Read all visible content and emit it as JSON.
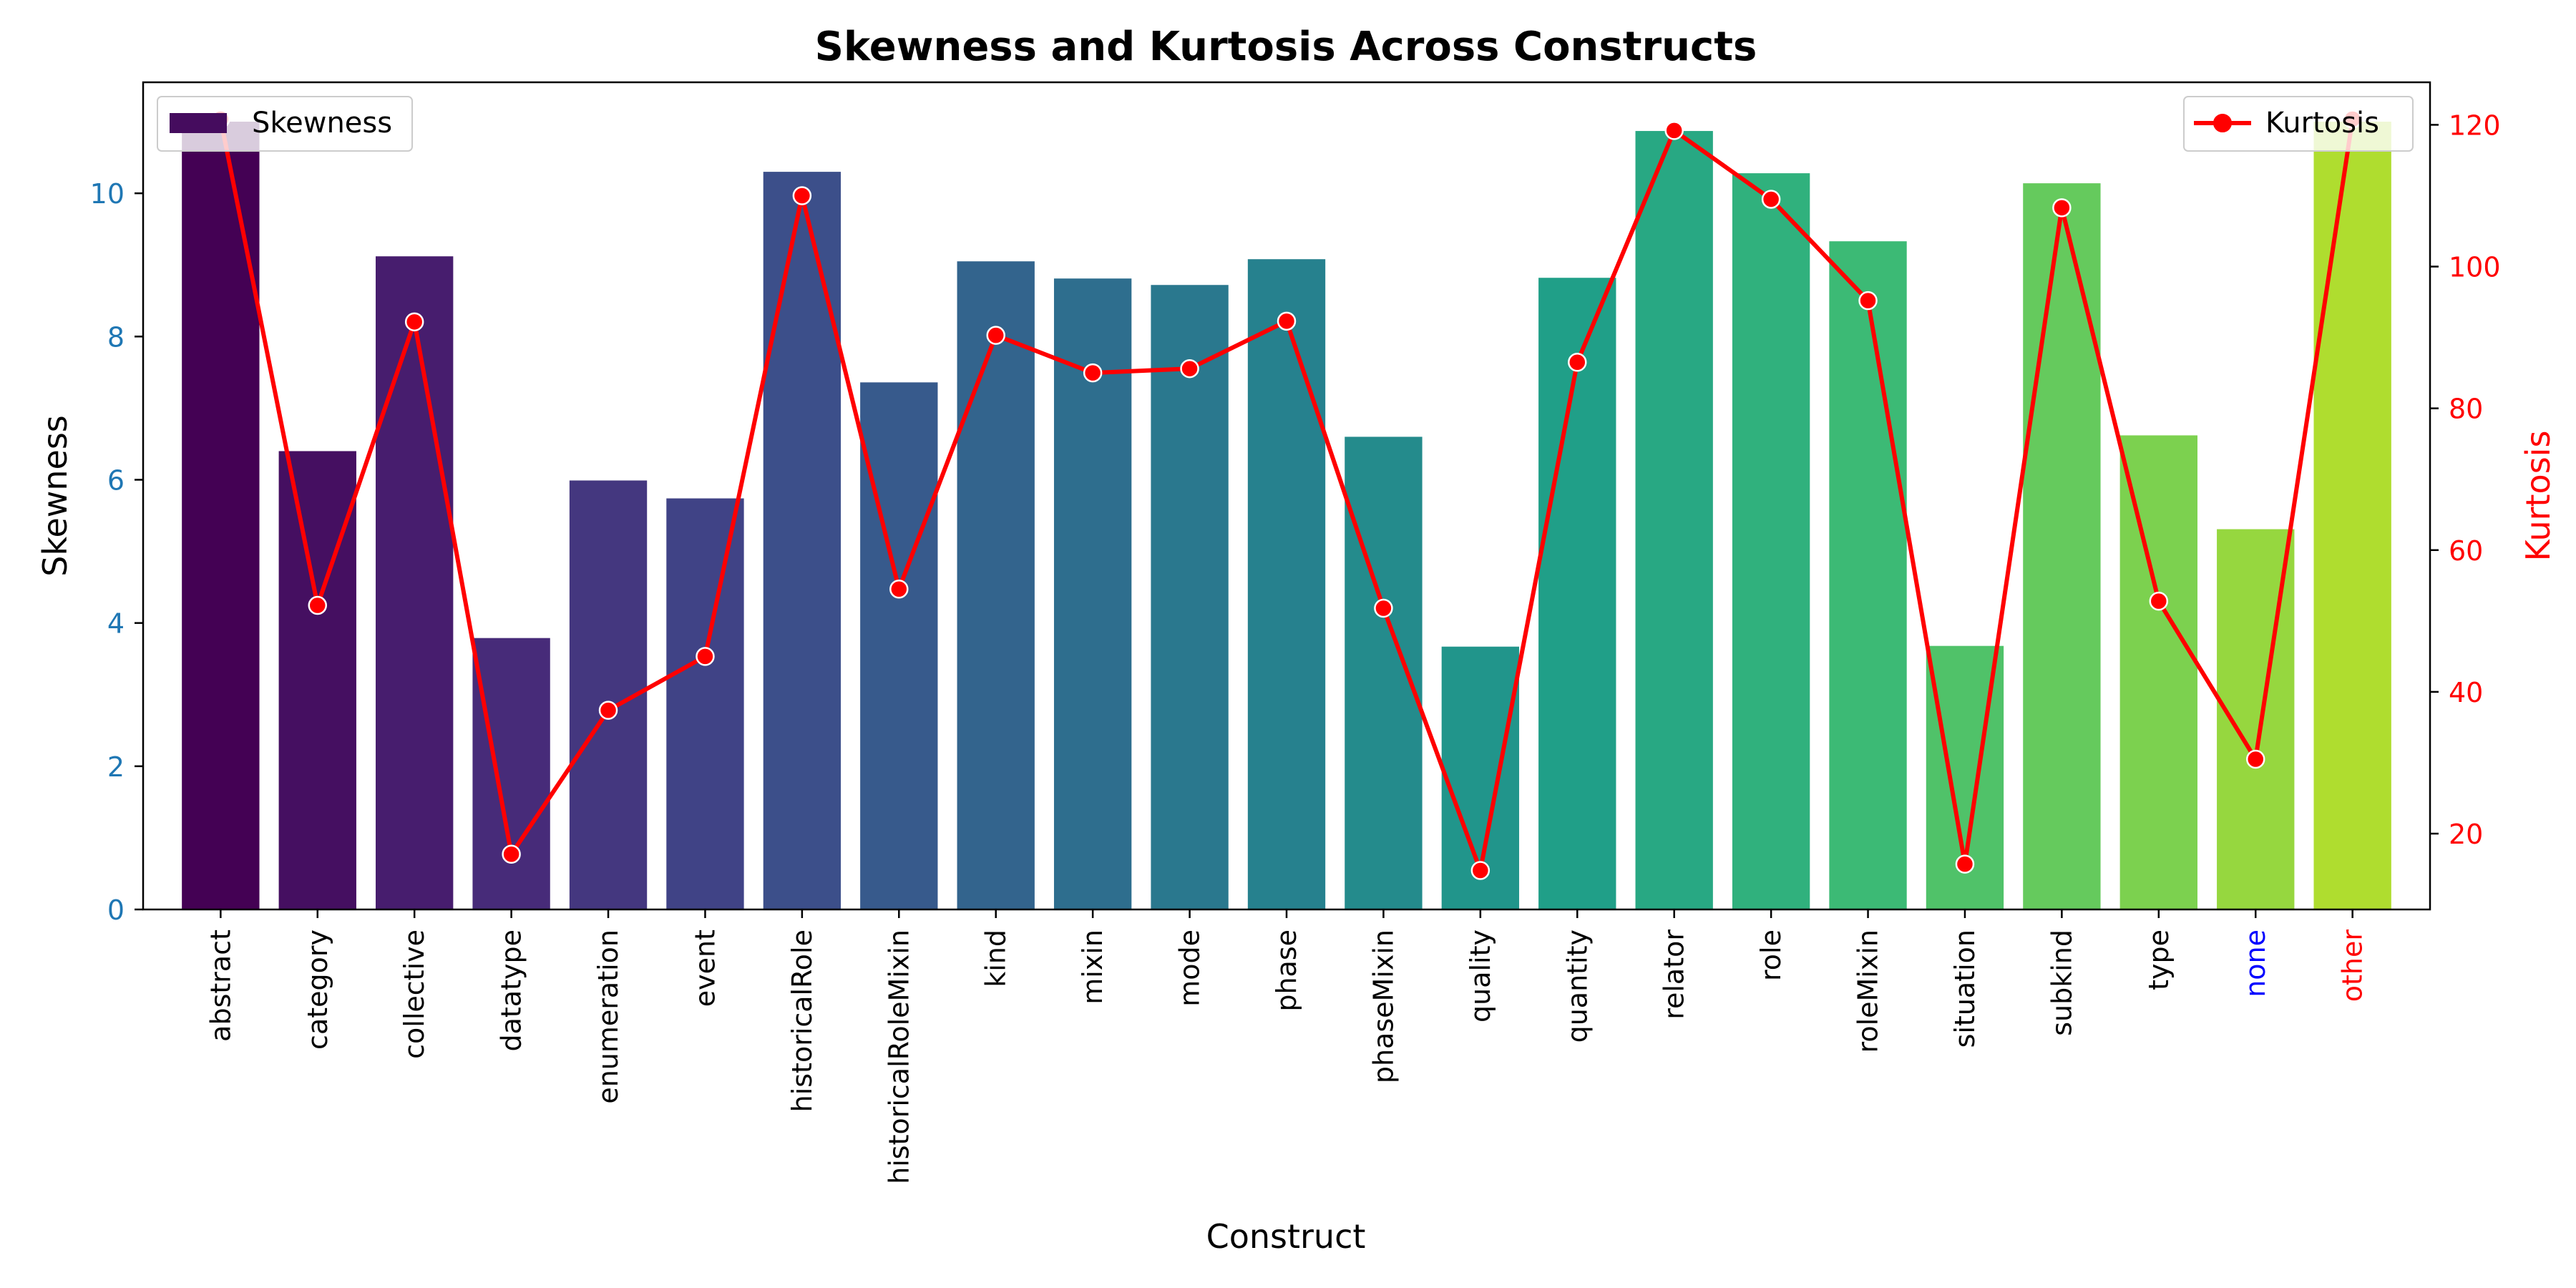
{
  "chart_data": {
    "type": "bar",
    "title": "Skewness and Kurtosis Across Constructs",
    "xlabel": "Construct",
    "ylabel": "Skewness",
    "y2label": "Kurtosis",
    "categories": [
      "abstract",
      "category",
      "collective",
      "datatype",
      "enumeration",
      "event",
      "historicalRole",
      "historicalRoleMixin",
      "kind",
      "mixin",
      "mode",
      "phase",
      "phaseMixin",
      "quality",
      "quantity",
      "relator",
      "role",
      "roleMixin",
      "situation",
      "subkind",
      "type",
      "none",
      "other"
    ],
    "category_label_colors": {
      "none": "#0000ff",
      "other": "#ff0000"
    },
    "ylim": [
      0,
      11.55
    ],
    "y2lim": [
      9.3,
      126.0
    ],
    "yticks": [
      0,
      2,
      4,
      6,
      8,
      10
    ],
    "y2ticks": [
      20,
      40,
      60,
      80,
      100,
      120
    ],
    "series": [
      {
        "name": "Skewness",
        "type": "bar",
        "axis": "left",
        "palette": "viridis",
        "values": [
          11.0,
          6.4,
          9.12,
          3.79,
          5.99,
          5.74,
          10.3,
          7.36,
          9.05,
          8.81,
          8.72,
          9.08,
          6.6,
          3.67,
          8.82,
          10.87,
          10.28,
          9.33,
          3.68,
          10.14,
          6.62,
          5.31,
          11.0
        ]
      },
      {
        "name": "Kurtosis",
        "type": "line",
        "axis": "right",
        "color": "#ff0000",
        "values": [
          120.8,
          52.2,
          92.2,
          17.1,
          37.4,
          45.0,
          110.0,
          54.5,
          90.3,
          85.0,
          85.6,
          92.3,
          51.8,
          14.8,
          86.5,
          119.2,
          109.5,
          95.2,
          15.7,
          108.3,
          52.8,
          30.5,
          120.8
        ]
      }
    ],
    "legend": [
      {
        "label": "Skewness",
        "placement": "top-left"
      },
      {
        "label": "Kurtosis",
        "placement": "top-right"
      }
    ],
    "left_axis_color": "#1f77b4",
    "right_axis_color": "#ff0000",
    "grid": false
  }
}
